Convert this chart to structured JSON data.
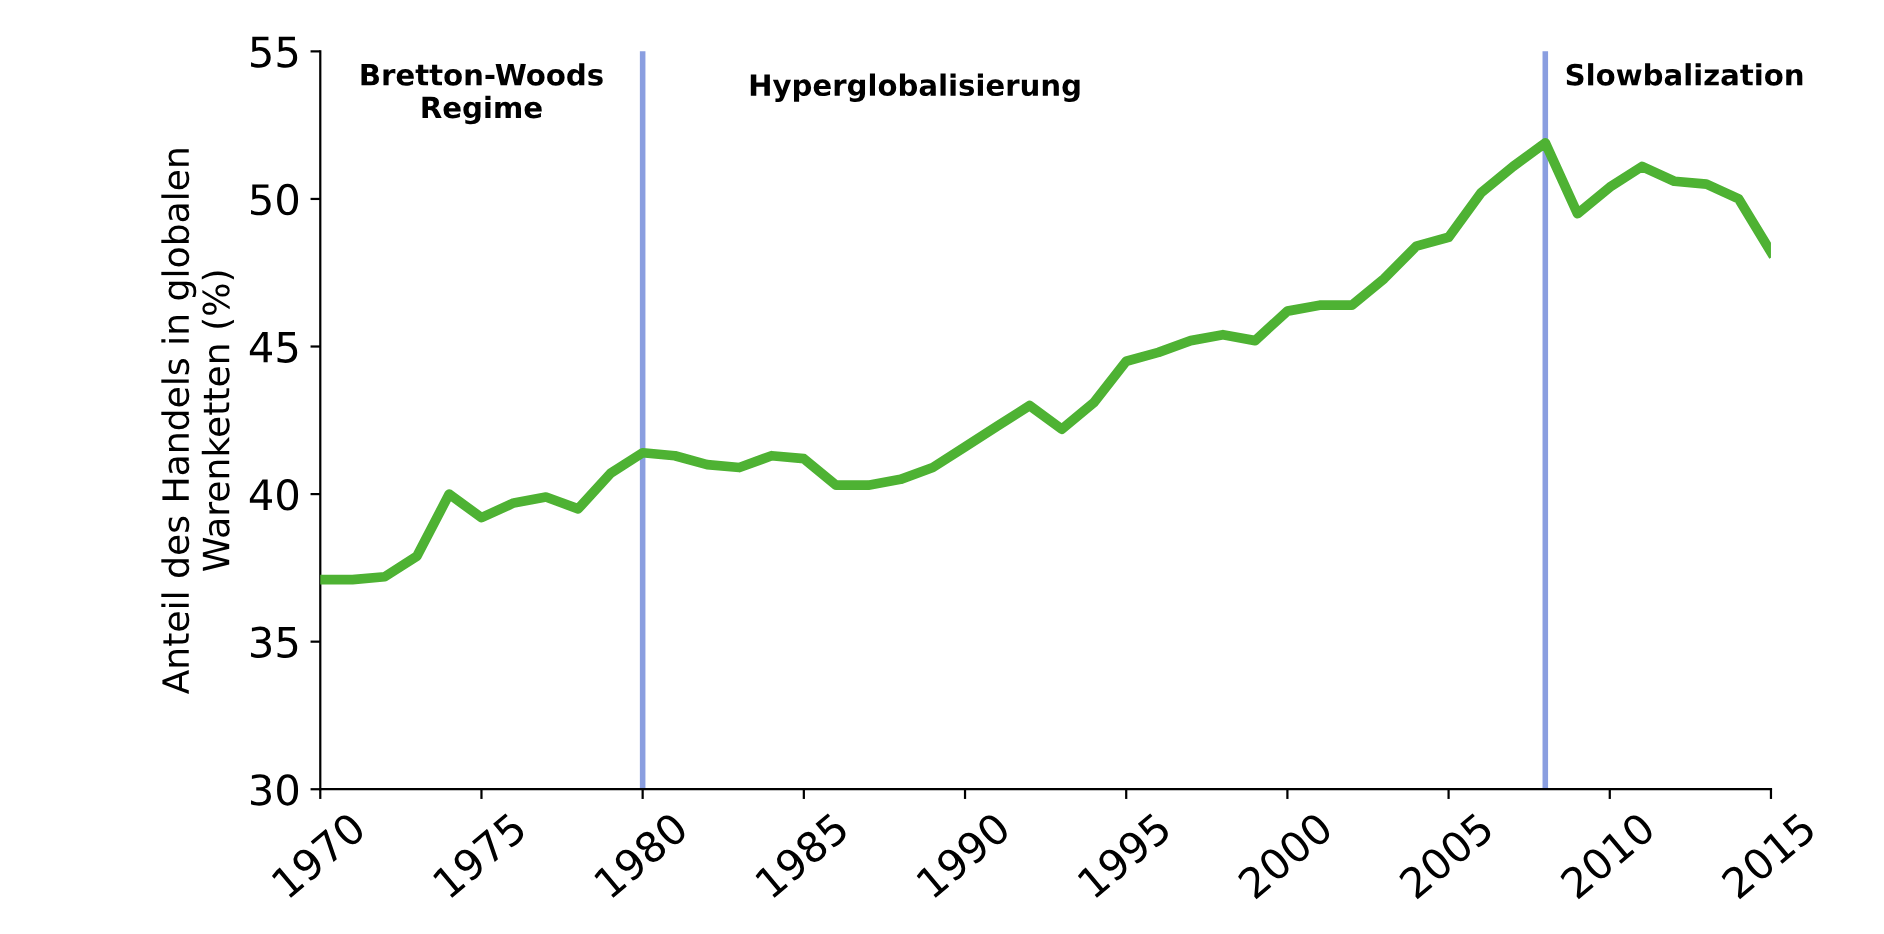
{
  "chart_data": {
    "type": "line",
    "ylabel": "Anteil des Handels in globalen\nWarenketten (%)",
    "x": [
      1970,
      1971,
      1972,
      1973,
      1974,
      1975,
      1976,
      1977,
      1978,
      1979,
      1980,
      1981,
      1982,
      1983,
      1984,
      1985,
      1986,
      1987,
      1988,
      1989,
      1990,
      1991,
      1992,
      1993,
      1994,
      1995,
      1996,
      1997,
      1998,
      1999,
      2000,
      2001,
      2002,
      2003,
      2004,
      2005,
      2006,
      2007,
      2008,
      2009,
      2010,
      2011,
      2012,
      2013,
      2014,
      2015
    ],
    "series": [
      {
        "color": "#4eb233",
        "values": [
          37.1,
          37.1,
          37.2,
          37.9,
          40.0,
          39.2,
          39.7,
          39.9,
          39.5,
          40.7,
          41.4,
          41.3,
          41.0,
          40.9,
          41.3,
          41.2,
          40.3,
          40.3,
          40.5,
          40.9,
          41.6,
          42.3,
          43.0,
          42.2,
          43.1,
          44.5,
          44.8,
          45.2,
          45.4,
          45.2,
          46.2,
          46.4,
          46.4,
          47.3,
          48.4,
          48.7,
          50.2,
          51.1,
          51.9,
          49.5,
          50.4,
          51.1,
          50.6,
          50.5,
          50.0,
          48.2
        ]
      }
    ],
    "xlim": [
      1970,
      2015
    ],
    "xticks": [
      1970,
      1975,
      1980,
      1985,
      1990,
      1995,
      2000,
      2005,
      2010,
      2015
    ],
    "ylim": [
      30,
      55
    ],
    "yticks": [
      30,
      35,
      40,
      45,
      50,
      55
    ],
    "ref_lines": [
      {
        "axis": "x",
        "value": 1980,
        "label": "Bretton-Woods\nRegime",
        "color": "#8a9ee0"
      },
      {
        "axis": "x",
        "value": 2008,
        "label": "Slowbalization",
        "color": "#8a9ee0"
      }
    ],
    "annotations": [
      "Hyperglobalisierung"
    ],
    "grid": false,
    "legend": false,
    "marker": "none",
    "line_style": "solid"
  }
}
